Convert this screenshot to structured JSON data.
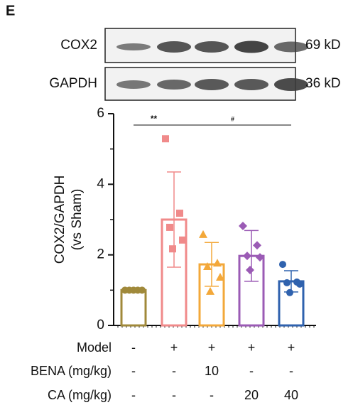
{
  "chart_data": {
    "type": "bar",
    "panel_label": "E",
    "blot": {
      "rows": [
        {
          "name": "COX2",
          "size": "69 kD"
        },
        {
          "name": "GAPDH",
          "size": "36 kD"
        }
      ]
    },
    "ylabel": [
      "COX2/GAPDH",
      "(vs Sham)"
    ],
    "ylim": [
      0,
      6
    ],
    "yticks": [
      0,
      2,
      4,
      6
    ],
    "minor_yticks": [
      1,
      3,
      5
    ],
    "values": [
      1.0,
      3.0,
      1.73,
      1.97,
      1.25
    ],
    "errors": [
      0,
      1.35,
      0.62,
      0.72,
      0.3
    ],
    "colors": [
      "#a0893a",
      "#f08a8a",
      "#f3a83a",
      "#9b5bb5",
      "#2f62ae"
    ],
    "markers": [
      "circle",
      "square",
      "triangle",
      "diamond",
      "circle"
    ],
    "points": [
      [
        1.0,
        1.0,
        1.0,
        1.0,
        1.0
      ],
      [
        5.29,
        3.18,
        2.78,
        2.42,
        2.17
      ],
      [
        2.58,
        1.77,
        1.67,
        1.37,
        0.97
      ],
      [
        2.82,
        2.27,
        1.97,
        1.93,
        1.57
      ],
      [
        1.73,
        1.23,
        1.21,
        1.17,
        0.93
      ]
    ],
    "annotations": [
      {
        "text": "**",
        "from": 0,
        "to": 1
      },
      {
        "text": "#",
        "from": 1,
        "to": 4
      }
    ],
    "table": {
      "rows": [
        {
          "label": "Model",
          "cells": [
            "-",
            "+",
            "+",
            "+",
            "+"
          ]
        },
        {
          "label": "BENA (mg/kg)",
          "cells": [
            "-",
            "-",
            "10",
            "-",
            "-"
          ]
        },
        {
          "label": "CA (mg/kg)",
          "cells": [
            "-",
            "-",
            "-",
            "20",
            "40"
          ]
        }
      ]
    }
  }
}
